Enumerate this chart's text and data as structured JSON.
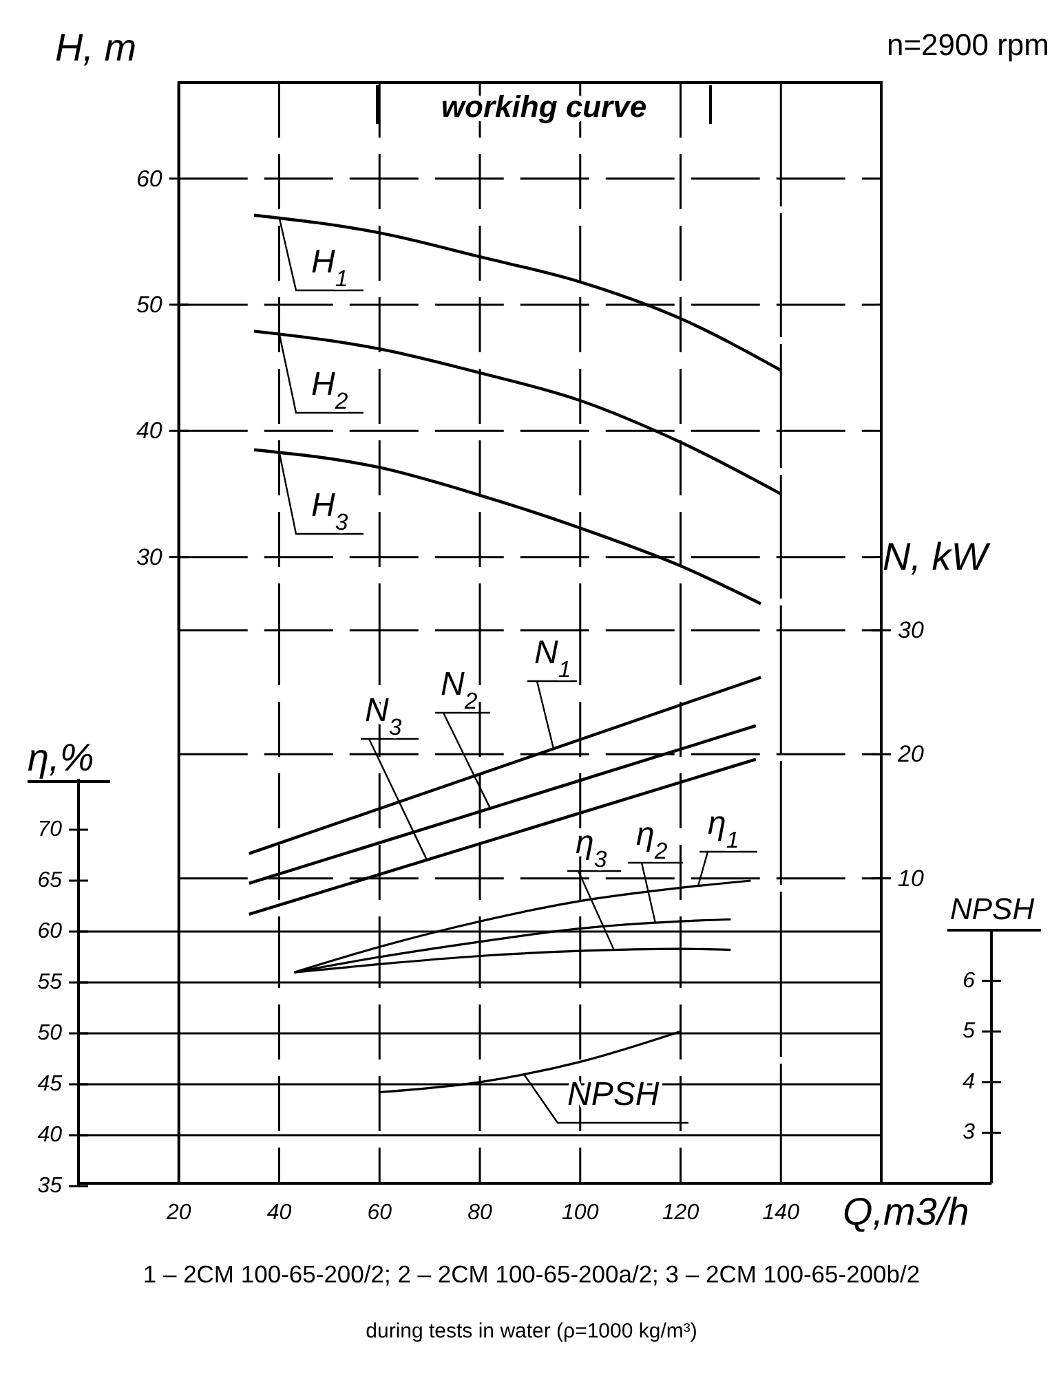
{
  "chart_data": [
    {
      "type": "line",
      "title": "n=2900 rpm",
      "ylabel": "H, m",
      "xlim": [
        20,
        160
      ],
      "xticks": [
        20,
        40,
        60,
        80,
        100,
        120,
        140
      ],
      "ylim": [
        24.2,
        67.5
      ],
      "yticks": [
        30,
        40,
        50,
        60
      ],
      "grid": true,
      "legend": "left",
      "marker": "none",
      "line_style": "solid",
      "tick_labels": "y",
      "series": [
        {
          "name": "H$_{1}$",
          "color": "#000000",
          "x": [
            35,
            60,
            80,
            100,
            120,
            140
          ],
          "values": [
            57.1,
            55.7,
            53.8,
            51.8,
            48.9,
            44.8
          ]
        },
        {
          "name": "H$_{2}$",
          "color": "#000000",
          "x": [
            35,
            60,
            80,
            100,
            120,
            140
          ],
          "values": [
            47.9,
            46.5,
            44.6,
            42.4,
            39.1,
            35
          ]
        },
        {
          "name": "H$_{3}$",
          "color": "#000000",
          "x": [
            35,
            60,
            80,
            100,
            120,
            136
          ],
          "values": [
            38.5,
            37.1,
            34.9,
            32.3,
            29.3,
            26.3
          ]
        }
      ],
      "annotations": [
        "workihg curve",
        "1 – 2CM 100-65-200/2;   2 – 2CM 100-65-200a/2;   3 – 2CM 100-65-200b/2",
        "during tests in water (ρ=1000 kg/m³)"
      ]
    },
    {
      "type": "line",
      "ylabel": "N, kW",
      "xlim": [
        20,
        160
      ],
      "xticks": [
        20,
        40,
        60,
        80,
        100,
        120,
        140
      ],
      "ylim": [
        5.6,
        30
      ],
      "yticks": [
        10,
        20,
        30
      ],
      "grid": true,
      "legend": "top",
      "marker": "none",
      "line_style": "solid",
      "tick_labels": "y",
      "series": [
        {
          "name": "N$_{1}$",
          "color": "#000000",
          "x": [
            34,
            136
          ],
          "values": [
            12,
            26.2
          ]
        },
        {
          "name": "N$_{2}$",
          "color": "#000000",
          "x": [
            34,
            135
          ],
          "values": [
            9.6,
            22.3
          ]
        },
        {
          "name": "N$_{3}$",
          "color": "#000000",
          "x": [
            34,
            135
          ],
          "values": [
            7.1,
            19.6
          ]
        }
      ]
    },
    {
      "type": "line",
      "ylabel": "η,%",
      "xlabel": "Q,m3/h",
      "xlim": [
        0,
        182
      ],
      "xticks": [
        20,
        40,
        60,
        80,
        100,
        120,
        140
      ],
      "ylim": [
        35,
        75
      ],
      "yticks": [
        35,
        40,
        45,
        50,
        55,
        60,
        65,
        70
      ],
      "grid": "y",
      "legend": "top right",
      "marker": "none",
      "line_style": "solid",
      "series": [
        {
          "name": "η$_{1}$",
          "color": "#000000",
          "x": [
            43,
            60,
            80,
            100,
            120,
            134
          ],
          "values": [
            56,
            58.5,
            61,
            63,
            64.3,
            65
          ]
        },
        {
          "name": "η$_{2}$",
          "color": "#000000",
          "x": [
            43,
            60,
            80,
            100,
            120,
            130
          ],
          "values": [
            56,
            57.5,
            59,
            60.3,
            61,
            61.2
          ]
        },
        {
          "name": "η$_{3}$",
          "color": "#000000",
          "x": [
            43,
            60,
            80,
            100,
            120,
            130
          ],
          "values": [
            56,
            56.8,
            57.6,
            58.1,
            58.3,
            58.2
          ]
        }
      ]
    },
    {
      "type": "line",
      "ylabel": "NPSH",
      "xlim": [
        0,
        182
      ],
      "xticks": [
        20,
        40,
        60,
        80,
        100,
        120,
        140
      ],
      "ylim": [
        2,
        7
      ],
      "yticks": [
        3,
        4,
        5,
        6
      ],
      "grid": "x",
      "marker": "none",
      "line_style": "solid",
      "tick_labels": "y",
      "series": [
        {
          "name": "NPSH",
          "color": "#000000",
          "x": [
            60,
            80,
            100,
            120
          ],
          "values": [
            3.8,
            4.0,
            4.4,
            5.0
          ]
        }
      ]
    }
  ]
}
